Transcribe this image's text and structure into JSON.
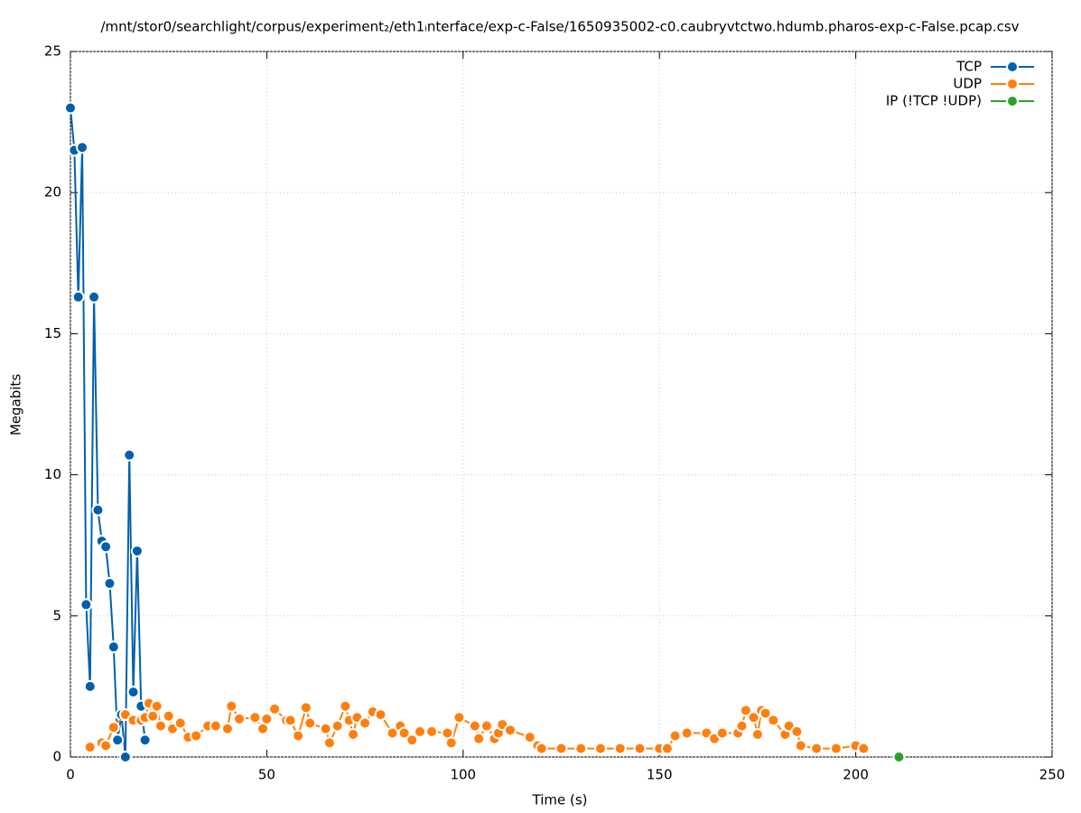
{
  "chart_data": {
    "type": "line",
    "title": "/mnt/stor0/searchlight/corpus/experiment₂/eth1ᵢnterface/exp-c-False/1650935002-c0.caubryvtctwo.hdumb.pharos-exp-c-False.pcap.csv",
    "x_label": "Time (s)",
    "y_label": "Megabits",
    "xlim": [
      0,
      250
    ],
    "xticks": [
      0,
      50,
      100,
      150,
      200,
      250
    ],
    "ylim": [
      0,
      25
    ],
    "yticks": [
      0,
      5,
      10,
      15,
      20,
      25
    ],
    "grid": true,
    "legend": "top-right",
    "series": [
      {
        "name": "TCP",
        "color": "#0060ad",
        "x": [
          0,
          1,
          2,
          3,
          4,
          5,
          6,
          7,
          8,
          9,
          10,
          11,
          12,
          13,
          14,
          15,
          16,
          17,
          18,
          19
        ],
        "values": [
          23.0,
          21.5,
          16.3,
          21.6,
          5.4,
          2.5,
          16.3,
          8.75,
          7.65,
          7.45,
          6.15,
          3.9,
          0.6,
          1.5,
          0,
          10.7,
          2.3,
          7.3,
          1.8,
          0.6
        ]
      },
      {
        "name": "UDP",
        "color": "#ff7f0e",
        "x": [
          5,
          8,
          9,
          11,
          14,
          16,
          18,
          19,
          20,
          21,
          22,
          23,
          25,
          26,
          28,
          30,
          32,
          35,
          37,
          40,
          41,
          43,
          47,
          49,
          50,
          52,
          55,
          56,
          58,
          60,
          61,
          65,
          66,
          68,
          70,
          71,
          72,
          73,
          75,
          77,
          79,
          82,
          84,
          85,
          87,
          89,
          92,
          96,
          97,
          99,
          103,
          104,
          106,
          108,
          109,
          110,
          112,
          117,
          119,
          120,
          125,
          130,
          135,
          140,
          145,
          150,
          152,
          154,
          157,
          162,
          164,
          166,
          170,
          171,
          172,
          174,
          175,
          176,
          177,
          179,
          182,
          183,
          185,
          186,
          190,
          195,
          200,
          202
        ],
        "values": [
          0.35,
          0.5,
          0.4,
          1.05,
          1.5,
          1.3,
          1.3,
          1.4,
          1.9,
          1.45,
          1.8,
          1.1,
          1.45,
          1.0,
          1.2,
          0.7,
          0.75,
          1.1,
          1.1,
          1.0,
          1.8,
          1.35,
          1.4,
          1.0,
          1.35,
          1.7,
          1.3,
          1.3,
          0.75,
          1.75,
          1.2,
          1.0,
          0.5,
          1.1,
          1.8,
          1.3,
          0.8,
          1.4,
          1.2,
          1.6,
          1.5,
          0.85,
          1.1,
          0.85,
          0.6,
          0.9,
          0.9,
          0.85,
          0.5,
          1.4,
          1.1,
          0.65,
          1.1,
          0.65,
          0.85,
          1.15,
          0.95,
          0.7,
          0.4,
          0.3,
          0.3,
          0.3,
          0.3,
          0.3,
          0.3,
          0.3,
          0.3,
          0.75,
          0.85,
          0.85,
          0.65,
          0.85,
          0.85,
          1.1,
          1.65,
          1.4,
          0.8,
          1.65,
          1.55,
          1.3,
          0.8,
          1.1,
          0.9,
          0.4,
          0.3,
          0.3,
          0.4,
          0.3
        ]
      },
      {
        "name": "IP (!TCP  !UDP)",
        "color": "#2ca02c",
        "x": [
          211
        ],
        "values": [
          0
        ]
      }
    ]
  }
}
